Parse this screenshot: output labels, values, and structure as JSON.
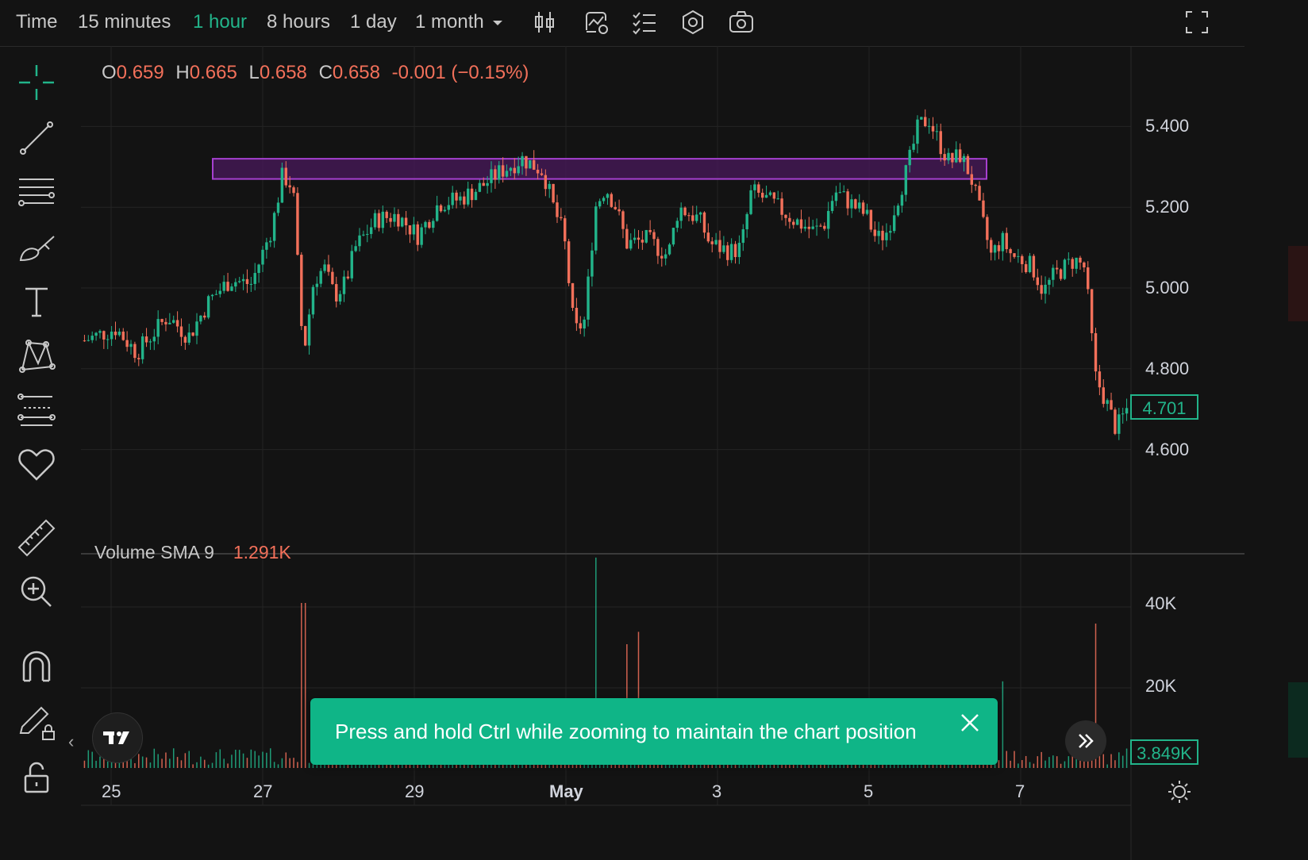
{
  "toolbar": {
    "time_label": "Time",
    "intervals": [
      "15 minutes",
      "1 hour",
      "8 hours",
      "1 day",
      "1 month"
    ],
    "active_interval": "1 hour",
    "icons": [
      "candlestick-icon",
      "indicators-icon",
      "checklist-icon",
      "settings-icon",
      "camera-icon",
      "fullscreen-icon"
    ]
  },
  "left_tools": [
    "crosshair-icon",
    "trend-line-icon",
    "horizontal-lines-icon",
    "brush-icon",
    "text-icon",
    "pattern-icon",
    "forecast-icon",
    "heart-icon",
    "ruler-icon",
    "zoom-in-icon",
    "magnet-icon",
    "lock-pencil-icon",
    "unlock-icon"
  ],
  "ohlc": {
    "o_key": "O",
    "o": "0.659",
    "h_key": "H",
    "h": "0.665",
    "l_key": "L",
    "l": "0.658",
    "c_key": "C",
    "c": "0.658",
    "change": "-0.001 (−0.15%)"
  },
  "volume": {
    "label": "Volume SMA 9",
    "value": "1.291K"
  },
  "toast": {
    "text": "Press and hold Ctrl while zooming to maintain the chart position"
  },
  "price_badge": "4.701",
  "volume_badge": "3.849K",
  "colors": {
    "up": "#22b48a",
    "down": "#f2705a",
    "zone_border": "#a640d0",
    "zone_fill": "#4a1a5c",
    "toast": "#0fb587"
  },
  "chart_data": {
    "type": "candlestick",
    "price_ticks": [
      "5.400",
      "5.200",
      "5.000",
      "4.800",
      "4.600"
    ],
    "volume_ticks": [
      "40K",
      "20K"
    ],
    "time_ticks": [
      "25",
      "27",
      "29",
      "May",
      "3",
      "5",
      "7"
    ],
    "ylim": [
      4.42,
      5.62
    ],
    "volume_ylim": [
      0,
      55000
    ],
    "resistance_zone": {
      "low": 5.27,
      "high": 5.32
    },
    "close_path": [
      [
        0,
        4.87
      ],
      [
        3,
        4.9
      ],
      [
        5,
        4.84
      ],
      [
        8,
        4.93
      ],
      [
        10,
        4.88
      ],
      [
        12,
        4.97
      ],
      [
        14,
        5.02
      ],
      [
        16,
        5.01
      ],
      [
        18,
        5.15
      ],
      [
        19,
        5.28
      ],
      [
        20,
        5.25
      ],
      [
        21,
        4.83
      ],
      [
        22,
        5.02
      ],
      [
        23,
        5.05
      ],
      [
        24,
        4.98
      ],
      [
        25,
        5.01
      ],
      [
        26,
        5.1
      ],
      [
        28,
        5.17
      ],
      [
        30,
        5.18
      ],
      [
        32,
        5.13
      ],
      [
        34,
        5.21
      ],
      [
        36,
        5.22
      ],
      [
        38,
        5.25
      ],
      [
        40,
        5.29
      ],
      [
        42,
        5.32
      ],
      [
        44,
        5.29
      ],
      [
        45,
        5.2
      ],
      [
        46,
        5.13
      ],
      [
        47,
        4.89
      ],
      [
        48,
        4.92
      ],
      [
        49,
        5.2
      ],
      [
        50,
        5.25
      ],
      [
        51,
        5.2
      ],
      [
        52,
        5.11
      ],
      [
        54,
        5.12
      ],
      [
        56,
        5.08
      ],
      [
        57,
        5.2
      ],
      [
        59,
        5.17
      ],
      [
        60,
        5.11
      ],
      [
        62,
        5.09
      ],
      [
        63,
        5.1
      ],
      [
        64,
        5.24
      ],
      [
        66,
        5.21
      ],
      [
        68,
        5.17
      ],
      [
        70,
        5.14
      ],
      [
        71,
        5.16
      ],
      [
        72,
        5.24
      ],
      [
        73,
        5.22
      ],
      [
        75,
        5.18
      ],
      [
        76,
        5.12
      ],
      [
        77,
        5.14
      ],
      [
        79,
        5.3
      ],
      [
        80,
        5.4
      ],
      [
        81,
        5.42
      ],
      [
        82,
        5.36
      ],
      [
        83,
        5.31
      ],
      [
        84,
        5.33
      ],
      [
        85,
        5.28
      ],
      [
        86,
        5.18
      ],
      [
        87,
        5.08
      ],
      [
        88,
        5.12
      ],
      [
        89,
        5.08
      ],
      [
        90,
        5.07
      ],
      [
        91,
        5.05
      ],
      [
        92,
        4.99
      ],
      [
        93,
        5.03
      ],
      [
        95,
        5.07
      ],
      [
        96,
        5.05
      ],
      [
        97,
        4.78
      ],
      [
        98,
        4.72
      ],
      [
        99,
        4.65
      ],
      [
        100,
        4.7
      ]
    ],
    "volume_spikes": [
      [
        21,
        40000
      ],
      [
        23,
        16000
      ],
      [
        49,
        51000
      ],
      [
        52,
        30000
      ],
      [
        53,
        33000
      ],
      [
        88,
        21000
      ],
      [
        97,
        35000
      ]
    ]
  }
}
